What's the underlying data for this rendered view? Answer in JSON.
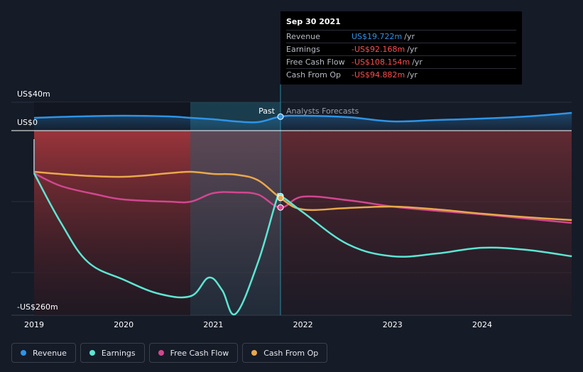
{
  "chart_data": {
    "type": "line",
    "title": "",
    "y_axis": {
      "label_top": "US$40m",
      "label_zero": "US$0",
      "label_bottom": "-US$260m",
      "ylim": [
        -260,
        40
      ]
    },
    "x_axis": {
      "ticks": [
        "2019",
        "2020",
        "2021",
        "2022",
        "2023",
        "2024"
      ],
      "xlim": [
        2019.0,
        2025.0
      ]
    },
    "divider": {
      "x": 2021.75,
      "past_label": "Past",
      "forecast_label": "Analysts Forecasts"
    },
    "series": [
      {
        "name": "Revenue",
        "color": "#2e94e6",
        "x": [
          2019.0,
          2019.5,
          2020.0,
          2020.5,
          2020.75,
          2021.0,
          2021.25,
          2021.5,
          2021.75,
          2022.0,
          2022.5,
          2023.0,
          2023.5,
          2024.0,
          2024.5,
          2025.0
        ],
        "values": [
          18,
          20,
          21,
          20,
          18,
          16,
          13,
          12,
          19.7,
          21,
          19,
          13,
          15,
          17,
          20,
          25
        ]
      },
      {
        "name": "Earnings",
        "color": "#5ce6d3",
        "x": [
          2019.0,
          2019.3,
          2019.6,
          2020.0,
          2020.4,
          2020.75,
          2020.95,
          2021.1,
          2021.25,
          2021.5,
          2021.7,
          2021.75,
          2022.0,
          2022.5,
          2023.0,
          2023.5,
          2024.0,
          2024.5,
          2025.0
        ],
        "values": [
          -60,
          -130,
          -185,
          -210,
          -230,
          -233,
          -207,
          -225,
          -258,
          -185,
          -100,
          -92.2,
          -115,
          -160,
          -177,
          -173,
          -165,
          -168,
          -177
        ]
      },
      {
        "name": "Free Cash Flow",
        "color": "#d0478f",
        "x": [
          2019.0,
          2019.3,
          2019.7,
          2020.0,
          2020.5,
          2020.75,
          2021.0,
          2021.25,
          2021.5,
          2021.75,
          2022.0,
          2022.5,
          2023.0,
          2023.5,
          2024.0,
          2024.5,
          2025.0
        ],
        "values": [
          -60,
          -78,
          -90,
          -97,
          -100,
          -100,
          -88,
          -87,
          -90,
          -108.2,
          -93,
          -98,
          -107,
          -113,
          -118,
          -124,
          -130
        ]
      },
      {
        "name": "Cash From Op",
        "color": "#e9a84c",
        "x": [
          2019.0,
          2019.5,
          2020.0,
          2020.5,
          2020.75,
          2021.0,
          2021.25,
          2021.5,
          2021.75,
          2022.0,
          2022.5,
          2023.0,
          2023.5,
          2024.0,
          2024.5,
          2025.0
        ],
        "values": [
          -58,
          -63,
          -65,
          -60,
          -58,
          -61,
          -62,
          -70,
          -94.9,
          -111,
          -109,
          -107,
          -111,
          -117,
          -122,
          -126
        ]
      }
    ]
  },
  "tooltip": {
    "date": "Sep 30 2021",
    "rows": [
      {
        "label": "Revenue",
        "value": "US$19.722m",
        "unit": "/yr"
      },
      {
        "label": "Earnings",
        "value": "-US$92.168m",
        "unit": "/yr"
      },
      {
        "label": "Free Cash Flow",
        "value": "-US$108.154m",
        "unit": "/yr"
      },
      {
        "label": "Cash From Op",
        "value": "-US$94.882m",
        "unit": "/yr"
      }
    ]
  },
  "legend": [
    {
      "label": "Revenue",
      "color": "#2e94e6"
    },
    {
      "label": "Earnings",
      "color": "#5ce6d3"
    },
    {
      "label": "Free Cash Flow",
      "color": "#d0478f"
    },
    {
      "label": "Cash From Op",
      "color": "#e9a84c"
    }
  ]
}
